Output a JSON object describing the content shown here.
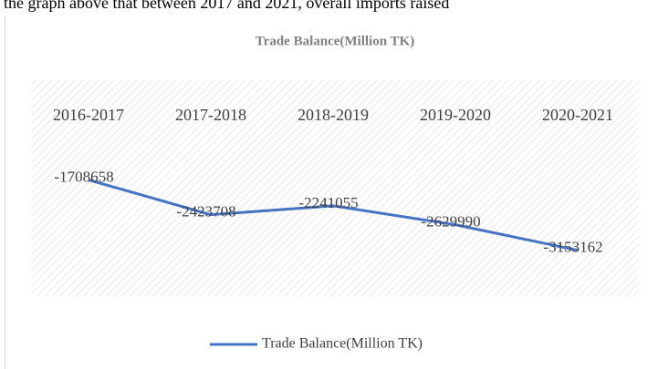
{
  "document_text": "the graph above that between 2017 and 2021, overall imports raised",
  "chart_data": {
    "type": "line",
    "title": "Trade Balance(Million TK)",
    "categories": [
      "2016-2017",
      "2017-2018",
      "2018-2019",
      "2019-2020",
      "2020-2021"
    ],
    "series": [
      {
        "name": "Trade Balance(Million TK)",
        "color": "#4472c4",
        "values": [
          -1708658,
          -2423708,
          -2241055,
          -2629990,
          -3153162
        ]
      }
    ],
    "ylim": [
      -4000000,
      0
    ],
    "data_labels": true,
    "legend": "bottom"
  }
}
